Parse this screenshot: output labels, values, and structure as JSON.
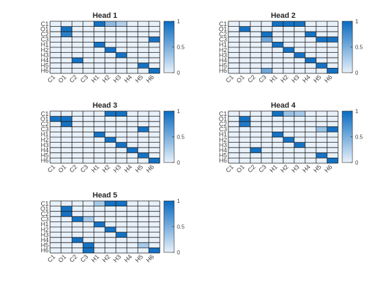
{
  "figure": {
    "colorscale": {
      "low": "#e8f1fa",
      "high": "#0a6bc0"
    }
  },
  "chart_data": [
    {
      "type": "heatmap",
      "title": "Head 1",
      "x_labels": [
        "C1",
        "O1",
        "C2",
        "C3",
        "H1",
        "H2",
        "H3",
        "H4",
        "H5",
        "H6"
      ],
      "y_labels": [
        "C1",
        "O1",
        "C2",
        "C3",
        "H1",
        "H2",
        "H3",
        "H4",
        "H5",
        "H6"
      ],
      "colorbar": {
        "ticks": [
          "0",
          "0.5",
          "1"
        ],
        "range": [
          0,
          1
        ]
      },
      "values": [
        [
          0,
          0,
          0,
          0,
          0.95,
          0.4,
          0.25,
          0,
          0,
          0
        ],
        [
          0,
          0.95,
          0,
          0,
          0,
          0,
          0,
          0,
          0,
          0
        ],
        [
          0,
          0.85,
          0,
          0,
          0,
          0,
          0,
          0,
          0,
          0
        ],
        [
          0,
          0,
          0,
          0,
          0,
          0,
          0,
          0,
          0,
          0.95
        ],
        [
          0,
          0,
          0,
          0,
          0.95,
          0,
          0,
          0,
          0,
          0
        ],
        [
          0,
          0,
          0,
          0,
          0,
          0.95,
          0,
          0,
          0,
          0
        ],
        [
          0,
          0,
          0,
          0,
          0,
          0,
          0.95,
          0,
          0,
          0
        ],
        [
          0,
          0,
          0.95,
          0,
          0,
          0,
          0,
          0,
          0,
          0
        ],
        [
          0,
          0,
          0,
          0,
          0,
          0,
          0,
          0,
          0.95,
          0
        ],
        [
          0,
          0,
          0,
          0,
          0,
          0,
          0,
          0,
          0,
          0.95
        ]
      ]
    },
    {
      "type": "heatmap",
      "title": "Head 2",
      "x_labels": [
        "C1",
        "O1",
        "C2",
        "C3",
        "H1",
        "H2",
        "H3",
        "H4",
        "H5",
        "H6"
      ],
      "y_labels": [
        "C1",
        "O1",
        "C2",
        "C3",
        "H1",
        "H2",
        "H3",
        "H4",
        "H5",
        "H6"
      ],
      "colorbar": {
        "ticks": [
          "0",
          "0.5",
          "1"
        ],
        "range": [
          0,
          1
        ]
      },
      "values": [
        [
          0,
          0,
          0,
          0,
          0.95,
          0.95,
          0.95,
          0,
          0,
          0
        ],
        [
          0,
          0.95,
          0,
          0,
          0,
          0,
          0,
          0,
          0,
          0
        ],
        [
          0,
          0,
          0,
          0.95,
          0,
          0,
          0,
          0.95,
          0,
          0
        ],
        [
          0,
          0,
          0,
          0.55,
          0,
          0,
          0,
          0,
          0.95,
          0.95
        ],
        [
          0,
          0,
          0,
          0,
          0.95,
          0,
          0,
          0,
          0,
          0
        ],
        [
          0,
          0,
          0,
          0,
          0,
          0.95,
          0,
          0,
          0,
          0
        ],
        [
          0,
          0,
          0,
          0,
          0,
          0,
          0.95,
          0,
          0,
          0
        ],
        [
          0,
          0,
          0,
          0,
          0,
          0,
          0,
          0.95,
          0,
          0
        ],
        [
          0,
          0,
          0,
          0,
          0,
          0,
          0,
          0,
          0.95,
          0
        ],
        [
          0,
          0,
          0,
          0.55,
          0,
          0,
          0,
          0,
          0,
          0.95
        ]
      ]
    },
    {
      "type": "heatmap",
      "title": "Head 3",
      "x_labels": [
        "C1",
        "O1",
        "C2",
        "C3",
        "H1",
        "H2",
        "H3",
        "H4",
        "H5",
        "H6"
      ],
      "y_labels": [
        "C1",
        "O1",
        "C2",
        "C3",
        "H1",
        "H2",
        "H3",
        "H4",
        "H5",
        "H6"
      ],
      "colorbar": {
        "ticks": [
          "0",
          "0.5",
          "1"
        ],
        "range": [
          0,
          1
        ]
      },
      "values": [
        [
          0,
          0,
          0,
          0,
          0,
          0.95,
          0.95,
          0,
          0,
          0
        ],
        [
          0.95,
          0.95,
          0,
          0,
          0,
          0,
          0,
          0,
          0,
          0
        ],
        [
          0,
          0.95,
          0,
          0,
          0,
          0,
          0,
          0,
          0,
          0
        ],
        [
          0,
          0,
          0,
          0,
          0,
          0,
          0,
          0,
          0.95,
          0
        ],
        [
          0,
          0,
          0,
          0,
          0.95,
          0,
          0,
          0,
          0,
          0
        ],
        [
          0,
          0,
          0,
          0,
          0,
          0.95,
          0,
          0,
          0,
          0
        ],
        [
          0,
          0,
          0,
          0,
          0,
          0,
          0.95,
          0,
          0,
          0
        ],
        [
          0,
          0,
          0,
          0,
          0,
          0,
          0,
          0.95,
          0,
          0
        ],
        [
          0,
          0,
          0,
          0,
          0,
          0,
          0,
          0,
          0.95,
          0
        ],
        [
          0,
          0,
          0,
          0,
          0,
          0,
          0,
          0,
          0,
          0.95
        ]
      ]
    },
    {
      "type": "heatmap",
      "title": "Head 4",
      "x_labels": [
        "C1",
        "O1",
        "C2",
        "C3",
        "H1",
        "H2",
        "H3",
        "H4",
        "H5",
        "H6"
      ],
      "y_labels": [
        "C1",
        "O1",
        "C2",
        "C3",
        "H1",
        "H2",
        "H3",
        "H4",
        "H5",
        "H6"
      ],
      "colorbar": {
        "ticks": [
          "0",
          "0.5",
          "1"
        ],
        "range": [
          0,
          1
        ]
      },
      "values": [
        [
          0,
          0,
          0,
          0,
          0.95,
          0.35,
          0.3,
          0,
          0,
          0
        ],
        [
          0,
          0.95,
          0,
          0,
          0,
          0,
          0,
          0,
          0,
          0
        ],
        [
          0,
          0.9,
          0,
          0,
          0,
          0,
          0,
          0,
          0,
          0
        ],
        [
          0,
          0,
          0,
          0,
          0,
          0,
          0,
          0,
          0.35,
          0.95
        ],
        [
          0,
          0,
          0,
          0,
          0.95,
          0,
          0,
          0,
          0,
          0
        ],
        [
          0,
          0,
          0,
          0,
          0,
          0.95,
          0,
          0,
          0,
          0
        ],
        [
          0,
          0,
          0,
          0,
          0,
          0,
          0.95,
          0,
          0,
          0
        ],
        [
          0,
          0,
          0.95,
          0,
          0,
          0,
          0,
          0,
          0,
          0
        ],
        [
          0,
          0,
          0,
          0,
          0,
          0,
          0,
          0,
          0.95,
          0
        ],
        [
          0,
          0,
          0,
          0,
          0,
          0,
          0,
          0,
          0,
          0.95
        ]
      ]
    },
    {
      "type": "heatmap",
      "title": "Head 5",
      "x_labels": [
        "C1",
        "O1",
        "C2",
        "C3",
        "H1",
        "H2",
        "H3",
        "H4",
        "H5",
        "H6"
      ],
      "y_labels": [
        "C1",
        "O1",
        "C2",
        "C3",
        "H1",
        "H2",
        "H3",
        "H4",
        "H5",
        "H6"
      ],
      "colorbar": {
        "ticks": [
          "0",
          "0.5",
          "1"
        ],
        "range": [
          0,
          1
        ]
      },
      "values": [
        [
          0,
          0,
          0,
          0,
          0.3,
          0.95,
          0.95,
          0,
          0,
          0
        ],
        [
          0,
          0.95,
          0,
          0,
          0,
          0,
          0,
          0,
          0,
          0
        ],
        [
          0,
          0.95,
          0,
          0,
          0,
          0,
          0,
          0,
          0,
          0
        ],
        [
          0,
          0,
          0.95,
          0.3,
          0,
          0,
          0,
          0,
          0,
          0
        ],
        [
          0,
          0,
          0,
          0,
          0.95,
          0,
          0,
          0,
          0,
          0
        ],
        [
          0,
          0,
          0,
          0,
          0,
          0.95,
          0,
          0,
          0,
          0
        ],
        [
          0,
          0,
          0,
          0,
          0,
          0,
          0.95,
          0,
          0,
          0
        ],
        [
          0,
          0,
          0.95,
          0,
          0,
          0,
          0,
          0,
          0,
          0
        ],
        [
          0,
          0,
          0,
          0.95,
          0,
          0,
          0,
          0,
          0.3,
          0
        ],
        [
          0,
          0,
          0,
          0.95,
          0,
          0,
          0,
          0,
          0,
          0.95
        ]
      ]
    }
  ]
}
